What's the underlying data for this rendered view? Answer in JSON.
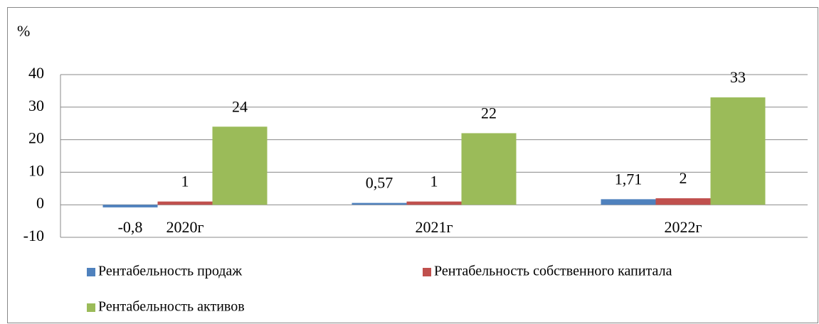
{
  "chart_data": {
    "type": "bar",
    "y_label": "%",
    "categories": [
      "2020г",
      "2021г",
      "2022г"
    ],
    "series": [
      {
        "name": "Рентабельность продаж",
        "color": "#4f81bd",
        "values": [
          -0.8,
          0.57,
          1.71
        ],
        "value_labels": [
          "-0,8",
          "0,57",
          "1,71"
        ]
      },
      {
        "name": "Рентабельность собственного капитала",
        "color": "#c0504d",
        "values": [
          1,
          1,
          2
        ]
      },
      {
        "name": "Рентабельность активов",
        "color": "#9bbb59",
        "values": [
          24,
          22,
          33
        ]
      }
    ],
    "ylim": [
      -10,
      40
    ],
    "yticks": [
      -10,
      0,
      10,
      20,
      30,
      40
    ],
    "grid": true,
    "legend": "bottom"
  }
}
